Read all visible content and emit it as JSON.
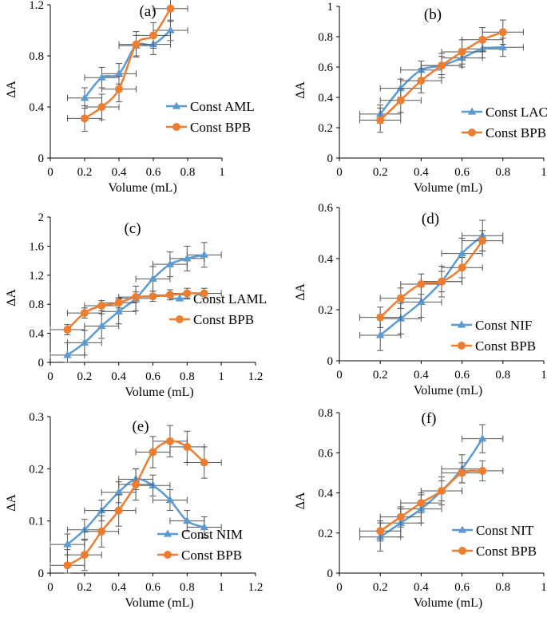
{
  "colors": {
    "series_a": "#5B9BD5",
    "series_b": "#ED7D31",
    "axis": "#000000",
    "error": "#555555"
  },
  "chart_data": [
    {
      "panel": "(a)",
      "type": "line",
      "xlabel": "Volume (mL)",
      "ylabel": "ΔA",
      "xlim": [
        0,
        1
      ],
      "ylim": [
        0,
        1.2
      ],
      "xticks": [
        "0",
        "0.2",
        "0.4",
        "0.6",
        "0.8",
        "1"
      ],
      "xtick_values": [
        0,
        0.2,
        0.4,
        0.6,
        0.8,
        1
      ],
      "yticks": [
        "0",
        "0.4",
        "0.8",
        "1.2"
      ],
      "ytick_values": [
        0,
        0.4,
        0.8,
        1.2
      ],
      "legend_position": "lower-right",
      "series": [
        {
          "name": "Const AML",
          "marker": "triangle",
          "x": [
            0.2,
            0.3,
            0.4,
            0.5,
            0.6,
            0.7
          ],
          "y": [
            0.47,
            0.63,
            0.66,
            0.88,
            0.89,
            1.0
          ],
          "xerr": 0.1,
          "yerr": 0.08
        },
        {
          "name": "Const BPB",
          "marker": "circle",
          "x": [
            0.2,
            0.3,
            0.4,
            0.5,
            0.6,
            0.7
          ],
          "y": [
            0.31,
            0.4,
            0.54,
            0.89,
            0.96,
            1.17
          ],
          "xerr": 0.1,
          "yerr": 0.1
        }
      ]
    },
    {
      "panel": "(b)",
      "type": "line",
      "xlabel": "Volume (mL)",
      "ylabel": "ΔA",
      "xlim": [
        0,
        1
      ],
      "ylim": [
        0,
        1
      ],
      "xticks": [
        "0",
        "0.2",
        "0.4",
        "0.6",
        "0.8",
        "1"
      ],
      "xtick_values": [
        0,
        0.2,
        0.4,
        0.6,
        0.8,
        1
      ],
      "yticks": [
        "0",
        "0.2",
        "0.4",
        "0.6",
        "0.8",
        "1"
      ],
      "ytick_values": [
        0,
        0.2,
        0.4,
        0.6,
        0.8,
        1
      ],
      "legend_position": "lower-right",
      "series": [
        {
          "name": "Const LAC",
          "marker": "triangle",
          "x": [
            0.2,
            0.3,
            0.4,
            0.5,
            0.6,
            0.7,
            0.8
          ],
          "y": [
            0.29,
            0.46,
            0.58,
            0.61,
            0.66,
            0.72,
            0.73
          ],
          "xerr": 0.1,
          "yerr": 0.06
        },
        {
          "name": "Const BPB",
          "marker": "circle",
          "x": [
            0.2,
            0.3,
            0.4,
            0.5,
            0.6,
            0.7,
            0.8
          ],
          "y": [
            0.25,
            0.38,
            0.51,
            0.61,
            0.7,
            0.78,
            0.83
          ],
          "xerr": 0.1,
          "yerr": 0.08
        }
      ]
    },
    {
      "panel": "(c)",
      "type": "line",
      "xlabel": "Volume (mL)",
      "ylabel": "ΔA",
      "xlim": [
        0,
        1.2
      ],
      "ylim": [
        0,
        2
      ],
      "xticks": [
        "0",
        "0.2",
        "0.4",
        "0.6",
        "0.8",
        "1",
        "1.2"
      ],
      "xtick_values": [
        0,
        0.2,
        0.4,
        0.6,
        0.8,
        1,
        1.2
      ],
      "yticks": [
        "0",
        "0.4",
        "0.8",
        "1.2",
        "1.6",
        "2"
      ],
      "ytick_values": [
        0,
        0.4,
        0.8,
        1.2,
        1.6,
        2
      ],
      "legend_position": "lower-right",
      "series": [
        {
          "name": "Const LAML",
          "marker": "triangle",
          "x": [
            0.1,
            0.2,
            0.3,
            0.4,
            0.5,
            0.6,
            0.7,
            0.8,
            0.9
          ],
          "y": [
            0.1,
            0.27,
            0.5,
            0.7,
            0.88,
            1.15,
            1.35,
            1.43,
            1.48
          ],
          "xerr": 0.1,
          "yerr": 0.17
        },
        {
          "name": "Const BPB",
          "marker": "circle",
          "x": [
            0.1,
            0.2,
            0.3,
            0.4,
            0.5,
            0.6,
            0.7,
            0.8,
            0.9
          ],
          "y": [
            0.45,
            0.68,
            0.78,
            0.82,
            0.9,
            0.91,
            0.93,
            0.95,
            0.95
          ],
          "xerr": 0.1,
          "yerr": 0.07
        }
      ]
    },
    {
      "panel": "(d)",
      "type": "line",
      "xlabel": "Volume (mL)",
      "ylabel": "ΔA",
      "xlim": [
        0,
        1
      ],
      "ylim": [
        0,
        0.6
      ],
      "xticks": [
        "0",
        "0.2",
        "0.4",
        "0.6",
        "0.8",
        "1"
      ],
      "xtick_values": [
        0,
        0.2,
        0.4,
        0.6,
        0.8,
        1
      ],
      "yticks": [
        "0",
        "0.2",
        "0.4",
        "0.6"
      ],
      "ytick_values": [
        0,
        0.2,
        0.4,
        0.6
      ],
      "legend_position": "lower-right",
      "series": [
        {
          "name": "Const NIF",
          "marker": "triangle",
          "x": [
            0.2,
            0.3,
            0.4,
            0.5,
            0.6,
            0.7
          ],
          "y": [
            0.1,
            0.165,
            0.23,
            0.31,
            0.42,
            0.49
          ],
          "xerr": 0.1,
          "yerr": 0.06
        },
        {
          "name": "Const BPB",
          "marker": "circle",
          "x": [
            0.2,
            0.3,
            0.4,
            0.5,
            0.6,
            0.7
          ],
          "y": [
            0.17,
            0.245,
            0.3,
            0.31,
            0.365,
            0.47
          ],
          "xerr": 0.1,
          "yerr": 0.04
        }
      ]
    },
    {
      "panel": "(e)",
      "type": "line",
      "xlabel": "Volume (mL)",
      "ylabel": "ΔA",
      "xlim": [
        0,
        1.2
      ],
      "ylim": [
        0,
        0.3
      ],
      "xticks": [
        "0",
        "0.2",
        "0.4",
        "0.6",
        "0.8",
        "1",
        "1.2"
      ],
      "xtick_values": [
        0,
        0.2,
        0.4,
        0.6,
        0.8,
        1,
        1.2
      ],
      "yticks": [
        "0",
        "0.1",
        "0.2",
        "0.3"
      ],
      "ytick_values": [
        0,
        0.1,
        0.2,
        0.3
      ],
      "legend_position": "lower-right",
      "series": [
        {
          "name": "Const NIM",
          "marker": "triangle",
          "x": [
            0.1,
            0.2,
            0.3,
            0.4,
            0.5,
            0.6,
            0.7,
            0.8,
            0.9
          ],
          "y": [
            0.055,
            0.083,
            0.12,
            0.155,
            0.18,
            0.168,
            0.14,
            0.1,
            0.088
          ],
          "xerr": 0.1,
          "yerr": 0.02
        },
        {
          "name": "Const BPB",
          "marker": "circle",
          "x": [
            0.1,
            0.2,
            0.3,
            0.4,
            0.5,
            0.6,
            0.7,
            0.8,
            0.9
          ],
          "y": [
            0.015,
            0.035,
            0.08,
            0.12,
            0.17,
            0.232,
            0.253,
            0.242,
            0.212
          ],
          "xerr": 0.1,
          "yerr": 0.03
        }
      ]
    },
    {
      "panel": "(f)",
      "type": "line",
      "xlabel": "Volume (mL)",
      "ylabel": "ΔA",
      "xlim": [
        0,
        1
      ],
      "ylim": [
        0,
        0.8
      ],
      "xticks": [
        "0",
        "0.2",
        "0.4",
        "0.6",
        "0.8",
        "1"
      ],
      "xtick_values": [
        0,
        0.2,
        0.4,
        0.6,
        0.8,
        1
      ],
      "yticks": [
        "0",
        "0.2",
        "0.4",
        "0.6",
        "0.8"
      ],
      "ytick_values": [
        0,
        0.2,
        0.4,
        0.6,
        0.8
      ],
      "legend_position": "lower-right",
      "series": [
        {
          "name": "Const NIT",
          "marker": "triangle",
          "x": [
            0.2,
            0.3,
            0.4,
            0.5,
            0.6,
            0.7
          ],
          "y": [
            0.18,
            0.25,
            0.32,
            0.41,
            0.52,
            0.67
          ],
          "xerr": 0.1,
          "yerr": 0.07
        },
        {
          "name": "Const BPB",
          "marker": "circle",
          "x": [
            0.2,
            0.3,
            0.4,
            0.5,
            0.6,
            0.7
          ],
          "y": [
            0.21,
            0.28,
            0.35,
            0.41,
            0.5,
            0.51
          ],
          "xerr": 0.1,
          "yerr": 0.05
        }
      ]
    }
  ]
}
